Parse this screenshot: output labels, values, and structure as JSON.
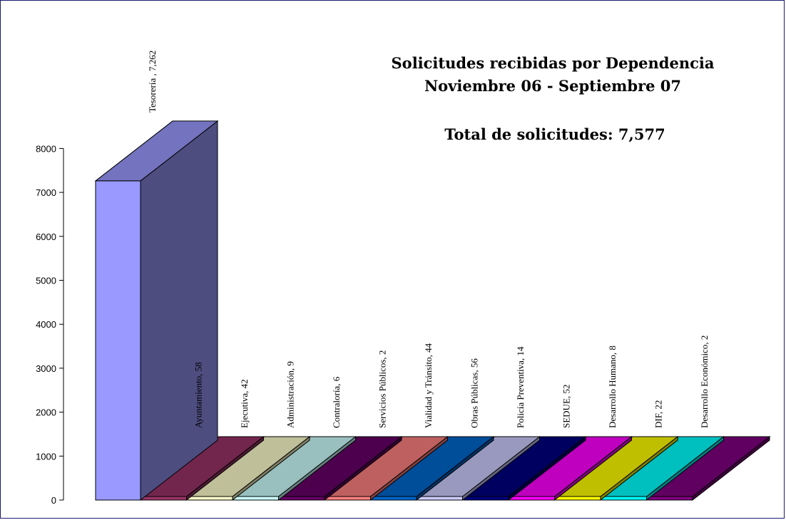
{
  "chart_data": {
    "type": "bar",
    "title": "Solicitudes recibidas por Dependencia",
    "subtitle": "Noviembre 06 - Septiembre 07",
    "total_label": "Total de solicitudes: 7,577",
    "ylim": [
      0,
      8000
    ],
    "yticks": [
      "0",
      "1000",
      "2000",
      "3000",
      "4000",
      "5000",
      "6000",
      "7000",
      "8000"
    ],
    "grid": false,
    "legend": "none",
    "categories": [
      "Tesorería",
      "Ayuntamiento",
      "Ejecutiva",
      "Administración",
      "Contraloría",
      "Servicios Públicos",
      "Vialidad y Tránsito",
      "Obras Públicas",
      "Policía Preventiva",
      "SEDUE",
      "Desarrollo Humano",
      "DIF",
      "Desarrollo Económico"
    ],
    "values": [
      7262,
      58,
      42,
      9,
      6,
      2,
      44,
      56,
      14,
      52,
      8,
      22,
      2
    ],
    "data_labels": [
      "Tesorería , 7,262",
      "Ayuntamiento, 58",
      "Ejecutiva, 42",
      "Administración, 9",
      "Contraloría, 6",
      "Servicios Públicos, 2",
      "Vialidad y Tránsito, 44",
      "Obras Públicas, 56",
      "Policía Preventiva, 14",
      "SEDUE, 52",
      "Desarrollo Humano, 8",
      "DIF, 22",
      "Desarrollo Económico, 2"
    ],
    "colors": [
      "#9999ff",
      "#993366",
      "#ffffcc",
      "#ccffff",
      "#660066",
      "#ff8080",
      "#0066cc",
      "#ccccff",
      "#000080",
      "#ff00ff",
      "#ffff00",
      "#00ffff",
      "#800080"
    ]
  }
}
